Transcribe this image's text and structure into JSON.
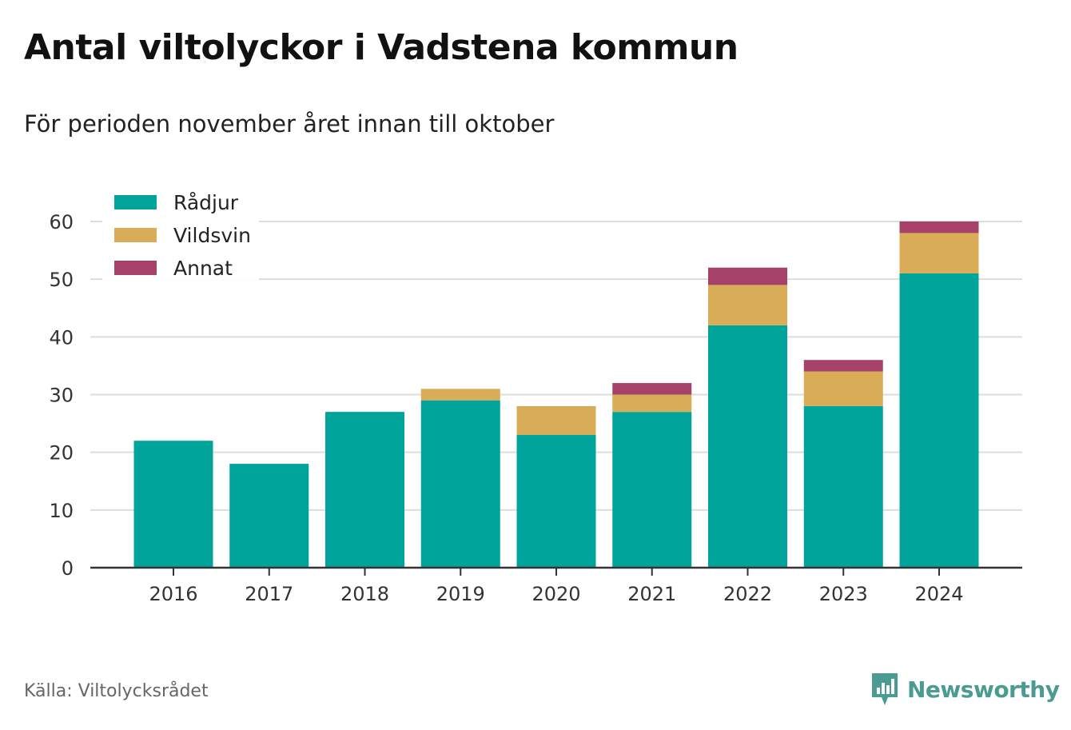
{
  "title": "Antal viltolyckor i Vadstena kommun",
  "subtitle": "För perioden november året innan till oktober",
  "source": "Källa: Viltolycksrådet",
  "brand": "Newsworthy",
  "colors": {
    "radjur": "#00a49a",
    "vildsvin": "#d9ad57",
    "annat": "#a6426a",
    "grid": "#dddddd",
    "axis": "#333333",
    "brand": "#4a9b91"
  },
  "chart_data": {
    "type": "bar",
    "stacked": true,
    "categories": [
      "2016",
      "2017",
      "2018",
      "2019",
      "2020",
      "2021",
      "2022",
      "2023",
      "2024"
    ],
    "series": [
      {
        "name": "Rådjur",
        "color": "#00a49a",
        "values": [
          22,
          18,
          27,
          29,
          23,
          27,
          42,
          28,
          51
        ]
      },
      {
        "name": "Vildsvin",
        "color": "#d9ad57",
        "values": [
          0,
          0,
          0,
          2,
          5,
          3,
          7,
          6,
          7
        ]
      },
      {
        "name": "Annat",
        "color": "#a6426a",
        "values": [
          0,
          0,
          0,
          0,
          0,
          2,
          3,
          2,
          2
        ]
      }
    ],
    "yticks": [
      0,
      10,
      20,
      30,
      40,
      50,
      60
    ],
    "ylim": [
      0,
      60
    ],
    "grid": true,
    "legend": "top-left"
  }
}
